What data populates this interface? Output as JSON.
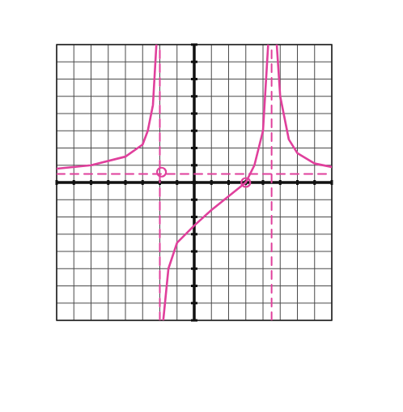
{
  "chart_data": {
    "type": "line",
    "xlim": [
      -8,
      8
    ],
    "ylim": [
      -8,
      8
    ],
    "xticks": [
      -8,
      -7,
      -6,
      -5,
      -4,
      -3,
      -2,
      -1,
      0,
      1,
      2,
      3,
      4,
      5,
      6,
      7,
      8
    ],
    "yticks": [
      -8,
      -7,
      -6,
      -5,
      -4,
      -3,
      -2,
      -1,
      0,
      1,
      2,
      3,
      4,
      5,
      6,
      7,
      8
    ],
    "grid": true,
    "tick_labels": false,
    "color": "#e0409c",
    "series": [
      {
        "type": "line",
        "line_style": "solid",
        "x": [
          -8,
          -6,
          -4,
          -3,
          -2.7,
          -2.4,
          -2.2
        ],
        "values": [
          0.8,
          1,
          1.5,
          2.2,
          3,
          4.5,
          8
        ]
      },
      {
        "type": "line",
        "line_style": "solid",
        "x": [
          -1.8,
          -1.5,
          -1,
          0,
          1,
          2,
          3,
          3.5,
          4,
          4.3
        ],
        "values": [
          -8,
          -5,
          -3.5,
          -2.5,
          -1.6,
          -0.8,
          0,
          1,
          3,
          8
        ]
      },
      {
        "type": "line",
        "line_style": "solid",
        "x": [
          4.8,
          5,
          5.5,
          6,
          7,
          8
        ],
        "values": [
          8,
          5,
          2.5,
          1.7,
          1.1,
          0.9
        ]
      },
      {
        "type": "line",
        "line_style": "dashed",
        "x": [
          -2,
          -2
        ],
        "values": [
          -8,
          8
        ]
      },
      {
        "type": "line",
        "line_style": "dashed",
        "x": [
          4.5,
          4.5
        ],
        "values": [
          -8,
          8
        ]
      },
      {
        "type": "line",
        "line_style": "dashed",
        "x": [
          -8,
          8
        ],
        "values": [
          0.5,
          0.5
        ]
      },
      {
        "type": "scatter",
        "marker": "open_circle",
        "x": [
          -1.9
        ],
        "values": [
          0.6
        ]
      },
      {
        "type": "scatter",
        "marker": "open_circle",
        "x": [
          3
        ],
        "values": [
          0
        ]
      }
    ]
  }
}
